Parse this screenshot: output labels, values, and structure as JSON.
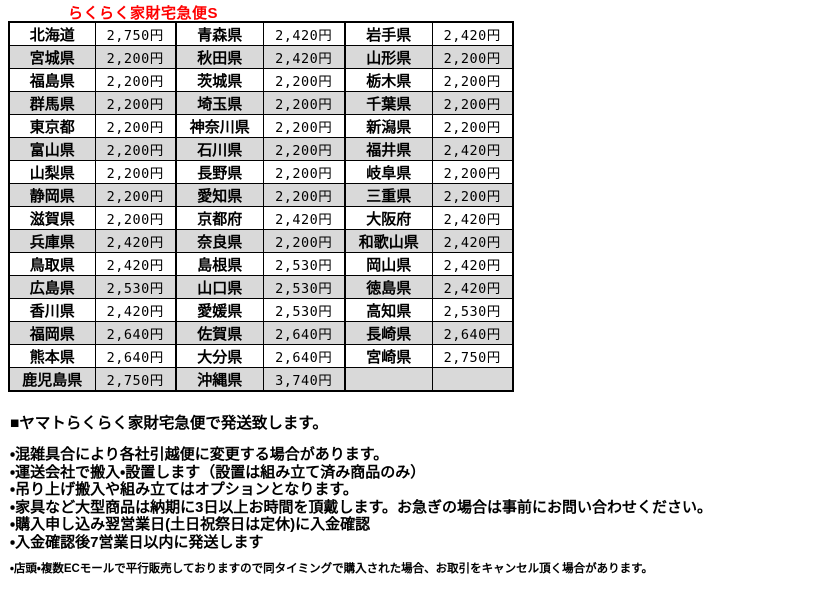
{
  "page": {
    "title": "らくらく家財宅急便S"
  },
  "colors": {
    "accent_red": "#ff0000",
    "row_alt_gray": "#d9d9d9",
    "border_black": "#000000",
    "text_black": "#000000"
  },
  "table": {
    "rows": [
      [
        "北海道",
        "2,750円",
        "青森県",
        "2,420円",
        "岩手県",
        "2,420円"
      ],
      [
        "宮城県",
        "2,200円",
        "秋田県",
        "2,420円",
        "山形県",
        "2,200円"
      ],
      [
        "福島県",
        "2,200円",
        "茨城県",
        "2,200円",
        "栃木県",
        "2,200円"
      ],
      [
        "群馬県",
        "2,200円",
        "埼玉県",
        "2,200円",
        "千葉県",
        "2,200円"
      ],
      [
        "東京都",
        "2,200円",
        "神奈川県",
        "2,200円",
        "新潟県",
        "2,200円"
      ],
      [
        "富山県",
        "2,200円",
        "石川県",
        "2,200円",
        "福井県",
        "2,420円"
      ],
      [
        "山梨県",
        "2,200円",
        "長野県",
        "2,200円",
        "岐阜県",
        "2,200円"
      ],
      [
        "静岡県",
        "2,200円",
        "愛知県",
        "2,200円",
        "三重県",
        "2,200円"
      ],
      [
        "滋賀県",
        "2,200円",
        "京都府",
        "2,420円",
        "大阪府",
        "2,420円"
      ],
      [
        "兵庫県",
        "2,420円",
        "奈良県",
        "2,200円",
        "和歌山県",
        "2,420円"
      ],
      [
        "鳥取県",
        "2,420円",
        "島根県",
        "2,530円",
        "岡山県",
        "2,420円"
      ],
      [
        "広島県",
        "2,530円",
        "山口県",
        "2,530円",
        "徳島県",
        "2,420円"
      ],
      [
        "香川県",
        "2,420円",
        "愛媛県",
        "2,530円",
        "高知県",
        "2,530円"
      ],
      [
        "福岡県",
        "2,640円",
        "佐賀県",
        "2,640円",
        "長崎県",
        "2,640円"
      ],
      [
        "熊本県",
        "2,640円",
        "大分県",
        "2,640円",
        "宮崎県",
        "2,750円"
      ],
      [
        "鹿児島県",
        "2,750円",
        "沖縄県",
        "3,740円",
        "",
        ""
      ]
    ]
  },
  "notes": {
    "heading": "■ヤマトらくらく家財宅急便で発送致します。",
    "bullets": [
      "・混雑具合により各社引越便に変更する場合があります。",
      "・運送会社で搬入・設置します（設置は組み立て済み商品のみ）",
      "・吊り上げ搬入や組み立てはオプションとなります。",
      "・家具など大型商品は納期に3日以上お時間を頂戴します。お急ぎの場合は事前にお問い合わせください。",
      "・購入申し込み翌営業日(土日祝祭日は定休)に入金確認",
      "・入金確認後7営業日以内に発送します"
    ],
    "small_note": "・店頭・複数ECモールで平行販売しておりますので同タイミングで購入された場合、お取引をキャンセル頂く場合があります。"
  }
}
